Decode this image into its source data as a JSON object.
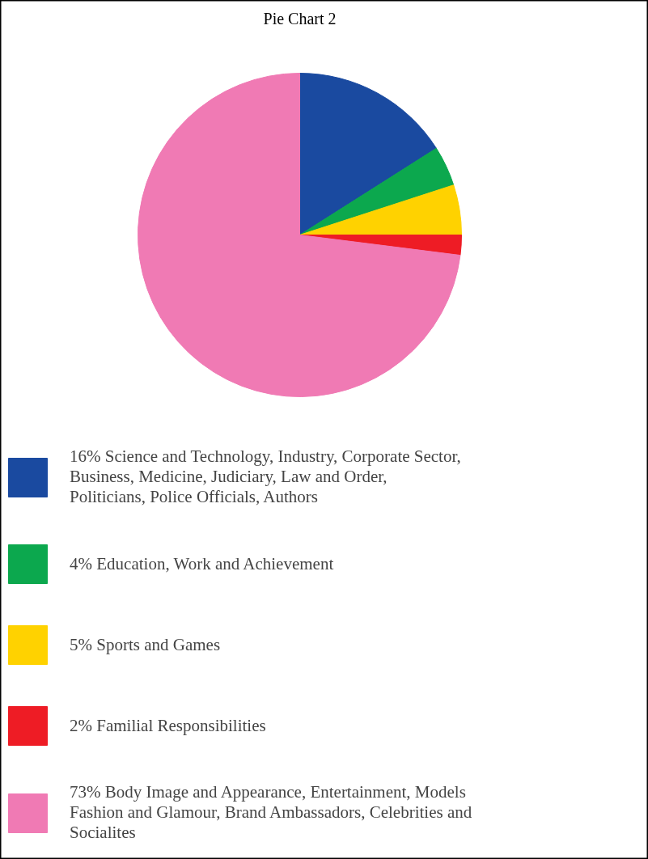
{
  "chart_data": {
    "type": "pie",
    "title": "Pie Chart 2",
    "categories": [
      "16% Science and Technology, Industry, Corporate Sector, Business, Medicine, Judiciary, Law and Order, Politicians, Police Officials, Authors",
      "4% Education, Work and Achievement",
      "5% Sports and Games",
      "2% Familial Responsibilities",
      "73% Body Image and Appearance, Entertainment, Models Fashion and Glamour, Brand Ambassadors, Celebrities and Socialites"
    ],
    "values": [
      16,
      4,
      5,
      2,
      73
    ],
    "colors": [
      "#1a4aa0",
      "#0ca84e",
      "#ffd200",
      "#ee1c25",
      "#f07ab4"
    ],
    "legend": "bottom"
  }
}
